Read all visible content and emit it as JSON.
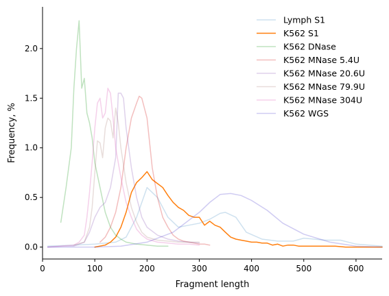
{
  "chart_data": {
    "type": "line",
    "xlabel": "Fragment length",
    "ylabel": "Frequency, %",
    "xlim": [
      0,
      650
    ],
    "ylim": [
      -0.12,
      2.42
    ],
    "xticks": [
      0,
      100,
      200,
      300,
      400,
      500,
      600
    ],
    "yticks": [
      0.0,
      0.5,
      1.0,
      1.5,
      2.0
    ],
    "xtick_labels": [
      "0",
      "100",
      "200",
      "300",
      "400",
      "500",
      "600"
    ],
    "ytick_labels": [
      "0.0",
      "0.5",
      "1.0",
      "1.5",
      "2.0"
    ],
    "grid": false,
    "legend_position": "top-right",
    "series": [
      {
        "name": "Lymph S1",
        "color": "#1f77b4",
        "opacity": 0.22,
        "x": [
          10,
          60,
          100,
          140,
          160,
          180,
          200,
          220,
          240,
          260,
          280,
          300,
          320,
          340,
          350,
          370,
          390,
          420,
          450,
          480,
          500,
          520,
          540,
          570,
          600,
          650
        ],
        "y": [
          0.01,
          0.02,
          0.03,
          0.05,
          0.1,
          0.3,
          0.6,
          0.5,
          0.3,
          0.2,
          0.22,
          0.24,
          0.28,
          0.34,
          0.35,
          0.3,
          0.15,
          0.08,
          0.06,
          0.06,
          0.09,
          0.08,
          0.07,
          0.07,
          0.03,
          0.01
        ]
      },
      {
        "name": "K562 S1",
        "color": "#ff7f0e",
        "opacity": 1,
        "x": [
          100,
          120,
          130,
          140,
          150,
          160,
          170,
          180,
          190,
          200,
          210,
          220,
          230,
          240,
          250,
          260,
          270,
          280,
          290,
          300,
          310,
          320,
          330,
          340,
          350,
          360,
          370,
          380,
          390,
          400,
          410,
          420,
          430,
          440,
          450,
          460,
          470,
          480,
          490,
          500,
          520,
          540,
          560,
          580,
          600,
          620,
          650
        ],
        "y": [
          0.0,
          0.02,
          0.05,
          0.1,
          0.2,
          0.35,
          0.55,
          0.65,
          0.7,
          0.76,
          0.68,
          0.64,
          0.6,
          0.52,
          0.45,
          0.4,
          0.37,
          0.32,
          0.3,
          0.3,
          0.22,
          0.26,
          0.22,
          0.2,
          0.15,
          0.1,
          0.08,
          0.07,
          0.06,
          0.05,
          0.05,
          0.04,
          0.04,
          0.02,
          0.03,
          0.01,
          0.02,
          0.02,
          0.01,
          0.01,
          0.01,
          0.01,
          0.01,
          0.0,
          0.0,
          0.0,
          0.0
        ]
      },
      {
        "name": "K562 DNase",
        "color": "#2ca02c",
        "opacity": 0.3,
        "x": [
          35,
          45,
          55,
          60,
          65,
          70,
          75,
          80,
          85,
          90,
          95,
          100,
          110,
          120,
          130,
          140,
          150,
          160,
          180,
          200,
          220,
          240
        ],
        "y": [
          0.25,
          0.6,
          1.0,
          1.6,
          2.0,
          2.28,
          1.6,
          1.7,
          1.35,
          1.25,
          1.1,
          0.85,
          0.6,
          0.35,
          0.2,
          0.12,
          0.08,
          0.05,
          0.03,
          0.02,
          0.01,
          0.01
        ]
      },
      {
        "name": "K562 MNase 5.4U",
        "color": "#d62728",
        "opacity": 0.3,
        "x": [
          110,
          120,
          130,
          140,
          150,
          160,
          170,
          180,
          185,
          190,
          195,
          200,
          205,
          210,
          220,
          230,
          240,
          250,
          260,
          270,
          280,
          290,
          300,
          310,
          320
        ],
        "y": [
          0.05,
          0.1,
          0.2,
          0.35,
          0.6,
          1.0,
          1.3,
          1.45,
          1.52,
          1.5,
          1.4,
          1.3,
          1.05,
          0.8,
          0.5,
          0.3,
          0.2,
          0.12,
          0.08,
          0.06,
          0.05,
          0.04,
          0.03,
          0.03,
          0.02
        ]
      },
      {
        "name": "K562 MNase 20.6U",
        "color": "#9467bd",
        "opacity": 0.3,
        "x": [
          10,
          40,
          60,
          80,
          90,
          100,
          110,
          120,
          130,
          140,
          145,
          150,
          155,
          160,
          170,
          180,
          190,
          200,
          220,
          240,
          260,
          280,
          300
        ],
        "y": [
          0.0,
          0.01,
          0.01,
          0.05,
          0.15,
          0.3,
          0.4,
          0.45,
          0.6,
          0.9,
          1.55,
          1.55,
          1.5,
          1.2,
          0.8,
          0.5,
          0.3,
          0.2,
          0.12,
          0.08,
          0.06,
          0.05,
          0.04
        ]
      },
      {
        "name": "K562 MNase 79.9U",
        "color": "#8c564b",
        "opacity": 0.2,
        "x": [
          60,
          80,
          90,
          95,
          100,
          105,
          110,
          115,
          120,
          125,
          130,
          135,
          140,
          145,
          150,
          160,
          170,
          180,
          190,
          200,
          220,
          240,
          260,
          280,
          300
        ],
        "y": [
          0.02,
          0.05,
          0.2,
          0.4,
          0.75,
          1.07,
          1.05,
          0.9,
          1.2,
          1.3,
          1.27,
          1.1,
          1.4,
          1.25,
          1.0,
          0.65,
          0.4,
          0.25,
          0.15,
          0.1,
          0.07,
          0.06,
          0.05,
          0.05,
          0.05
        ]
      },
      {
        "name": "K562 MNase 304U",
        "color": "#e377c2",
        "opacity": 0.35,
        "x": [
          10,
          60,
          70,
          80,
          85,
          90,
          95,
          100,
          105,
          110,
          115,
          120,
          125,
          130,
          135,
          140,
          150,
          160,
          170,
          180,
          190,
          200,
          220,
          240,
          260,
          280,
          300
        ],
        "y": [
          0.0,
          0.02,
          0.05,
          0.12,
          0.3,
          0.55,
          0.85,
          1.2,
          1.45,
          1.5,
          1.3,
          1.35,
          1.6,
          1.55,
          1.3,
          1.0,
          0.7,
          0.45,
          0.3,
          0.18,
          0.12,
          0.08,
          0.05,
          0.04,
          0.03,
          0.03,
          0.02
        ]
      },
      {
        "name": "K562 WGS",
        "color": "#3f2ecb",
        "opacity": 0.25,
        "x": [
          10,
          100,
          150,
          200,
          250,
          300,
          320,
          340,
          360,
          380,
          400,
          430,
          460,
          500,
          550,
          600,
          650
        ],
        "y": [
          0.0,
          0.0,
          0.01,
          0.05,
          0.15,
          0.35,
          0.45,
          0.53,
          0.54,
          0.52,
          0.47,
          0.37,
          0.24,
          0.13,
          0.05,
          0.01,
          0.0
        ]
      }
    ]
  }
}
